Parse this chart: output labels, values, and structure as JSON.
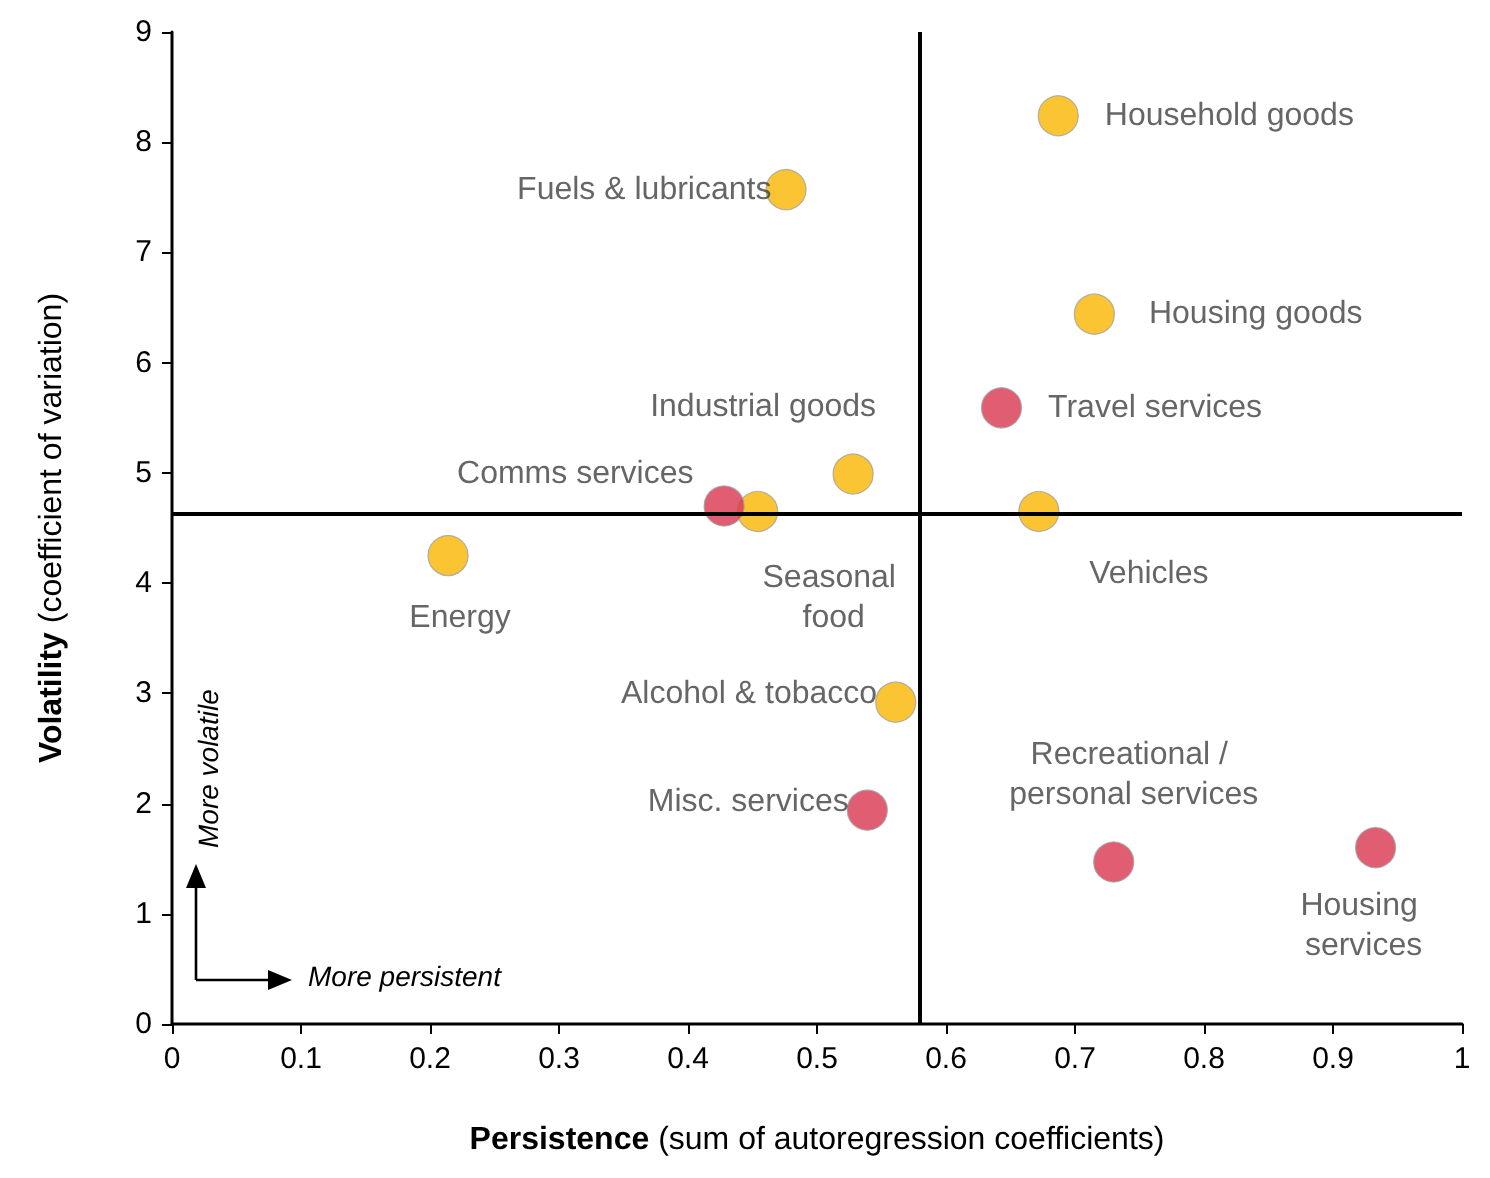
{
  "chart_data": {
    "type": "scatter",
    "xlabel": "Persistence (sum of autoregression coefficients)",
    "ylabel": "Volatility (coefficient of variation)",
    "xlim": [
      0,
      1
    ],
    "xticks": [
      0,
      0.1,
      0.2,
      0.3,
      0.4,
      0.5,
      0.6,
      0.7,
      0.8,
      0.9,
      1
    ],
    "ylim": [
      0,
      9
    ],
    "yticks": [
      0,
      1,
      2,
      3,
      4,
      5,
      6,
      7,
      8,
      9
    ],
    "grid": false,
    "marker": "circle",
    "series": [
      {
        "color": "#f9b500",
        "x": [
          0.687,
          0.476,
          0.715,
          0.528,
          0.454,
          0.672,
          0.214,
          0.561
        ],
        "values": [
          8.24,
          7.57,
          6.44,
          4.99,
          4.65,
          4.65,
          4.25,
          2.92
        ],
        "value_labels": [
          "Household goods",
          "Fuels & lubricants",
          "Housing goods",
          "Industrial goods",
          "Seasonal food",
          "Vehicles",
          "Energy",
          "Alcohol & tobacco"
        ]
      },
      {
        "color": "#d9344f",
        "x": [
          0.643,
          0.428,
          0.539,
          0.73,
          0.933
        ],
        "values": [
          5.59,
          4.7,
          1.94,
          1.47,
          1.6
        ],
        "value_labels": [
          "Travel services",
          "Comms services",
          "Misc. services",
          "Recreational / personal services",
          "Housing services"
        ]
      }
    ],
    "ref_lines": [
      {
        "axis": "x",
        "value": 0.583,
        "color": "#000000"
      },
      {
        "axis": "y",
        "value": 4.63,
        "color": "#000000"
      }
    ],
    "annotations": [
      "More volatile",
      "More persistent"
    ]
  }
}
